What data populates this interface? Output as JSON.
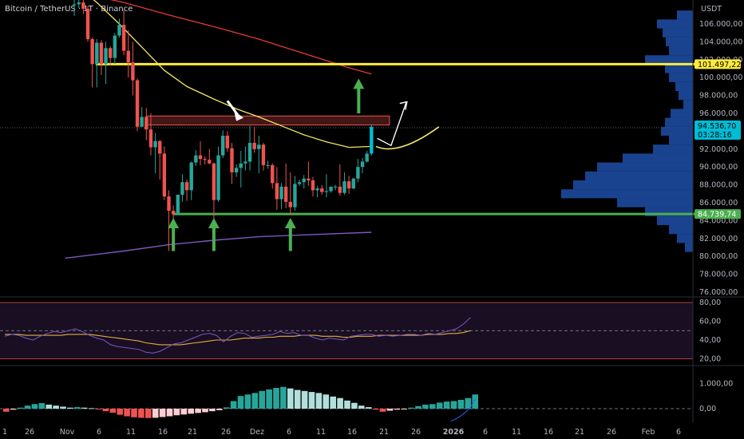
{
  "header": {
    "title": "Bitcoin / TetherUS · 1T · Binance",
    "currency": "USDT"
  },
  "colors": {
    "background": "#000000",
    "up": "#26a69a",
    "up_highlight": "#00bcd4",
    "down": "#ef5350",
    "resistance_line": "#ffeb3b",
    "support_line": "#4caf50",
    "ema_short": "#f5e663",
    "ma_long": "#e53935",
    "ma_200": "#7e57c2",
    "volume_profile": "#1e4fa8",
    "rsi_line": "#7e57c2",
    "rsi_signal": "#e0b040",
    "macd_pos": "#26a69a",
    "macd_pos_light": "#b2dfdb",
    "macd_neg": "#ef5350",
    "macd_neg_light": "#ffcdd2",
    "arrow_green": "#4caf50",
    "arrow_white": "#ffffff",
    "zone_fill": "#ef5350"
  },
  "price_axis": {
    "ticks": [
      "106.000,00",
      "104.000,00",
      "102.000,00",
      "100.000,00",
      "98.000,00",
      "96.000,00",
      "92.000,00",
      "90.000,00",
      "88.000,00",
      "86.000,00",
      "84.000,00",
      "82.000,00",
      "80.000,00",
      "78.000,00",
      "76.000,00"
    ],
    "resistance_badge": "101.497,22",
    "current_price_badge": "94.536,70",
    "countdown_badge": "03:28:16",
    "support_badge": "84.739,74"
  },
  "rsi_axis": {
    "ticks": [
      "80,00",
      "60,00",
      "40,00",
      "20,00"
    ]
  },
  "macd_axis": {
    "ticks": [
      "1.000,00",
      "0,00"
    ]
  },
  "time_axis": {
    "labels": [
      "1",
      "26",
      "Nov",
      "6",
      "11",
      "16",
      "21",
      "26",
      "Dez",
      "6",
      "11",
      "16",
      "21",
      "26",
      "2026",
      "6",
      "11",
      "16",
      "21",
      "26",
      "Feb",
      "6"
    ]
  },
  "chart_data": {
    "type": "candlestick",
    "ylim": [
      75000,
      109000
    ],
    "candles": [
      {
        "date": "Okt 31",
        "o": 108100,
        "h": 109000,
        "l": 106900,
        "c": 108200
      },
      {
        "date": "Nov 1",
        "o": 108200,
        "h": 109200,
        "l": 107800,
        "c": 108400
      },
      {
        "date": "Nov 2",
        "o": 108400,
        "h": 108800,
        "l": 107100,
        "c": 107700
      },
      {
        "date": "Nov 3",
        "o": 107700,
        "h": 108000,
        "l": 104000,
        "c": 104300
      },
      {
        "date": "Nov 4",
        "o": 104300,
        "h": 104500,
        "l": 98900,
        "c": 101500
      },
      {
        "date": "Nov 5",
        "o": 101500,
        "h": 104300,
        "l": 98900,
        "c": 103900
      },
      {
        "date": "Nov 6",
        "o": 103900,
        "h": 104200,
        "l": 100300,
        "c": 101500
      },
      {
        "date": "Nov 7",
        "o": 101500,
        "h": 104000,
        "l": 99300,
        "c": 103300
      },
      {
        "date": "Nov 8",
        "o": 103300,
        "h": 103500,
        "l": 101400,
        "c": 102200
      },
      {
        "date": "Nov 9",
        "o": 102200,
        "h": 105000,
        "l": 101500,
        "c": 104700
      },
      {
        "date": "Nov 10",
        "o": 104700,
        "h": 106600,
        "l": 104500,
        "c": 105900
      },
      {
        "date": "Nov 11",
        "o": 105900,
        "h": 107500,
        "l": 102500,
        "c": 103000
      },
      {
        "date": "Nov 12",
        "o": 103000,
        "h": 105300,
        "l": 100000,
        "c": 101700
      },
      {
        "date": "Nov 13",
        "o": 101700,
        "h": 104000,
        "l": 98000,
        "c": 99700
      },
      {
        "date": "Nov 14",
        "o": 99700,
        "h": 99900,
        "l": 94000,
        "c": 94500
      },
      {
        "date": "Nov 15",
        "o": 94500,
        "h": 96700,
        "l": 94500,
        "c": 95600
      },
      {
        "date": "Nov 16",
        "o": 95600,
        "h": 96600,
        "l": 93000,
        "c": 94200
      },
      {
        "date": "Nov 17",
        "o": 94200,
        "h": 96000,
        "l": 91300,
        "c": 92200
      },
      {
        "date": "Nov 18",
        "o": 92200,
        "h": 93800,
        "l": 89300,
        "c": 92900
      },
      {
        "date": "Nov 19",
        "o": 92900,
        "h": 93000,
        "l": 88600,
        "c": 91500
      },
      {
        "date": "Nov 20",
        "o": 91500,
        "h": 92300,
        "l": 86300,
        "c": 86700
      },
      {
        "date": "Nov 21",
        "o": 86700,
        "h": 87400,
        "l": 80600,
        "c": 85100
      },
      {
        "date": "Nov 22",
        "o": 85100,
        "h": 85700,
        "l": 83500,
        "c": 84700
      },
      {
        "date": "Nov 23",
        "o": 84700,
        "h": 86600,
        "l": 84700,
        "c": 86900
      },
      {
        "date": "Nov 24",
        "o": 86900,
        "h": 89200,
        "l": 86100,
        "c": 88300
      },
      {
        "date": "Nov 25",
        "o": 88300,
        "h": 88600,
        "l": 86200,
        "c": 87400
      },
      {
        "date": "Nov 26",
        "o": 87400,
        "h": 90600,
        "l": 86300,
        "c": 90500
      },
      {
        "date": "Nov 27",
        "o": 90500,
        "h": 91900,
        "l": 90100,
        "c": 91300
      },
      {
        "date": "Nov 28",
        "o": 91300,
        "h": 92900,
        "l": 90200,
        "c": 90900
      },
      {
        "date": "Nov 29",
        "o": 90900,
        "h": 91200,
        "l": 90300,
        "c": 90800
      },
      {
        "date": "Nov 30",
        "o": 90800,
        "h": 92000,
        "l": 90300,
        "c": 90400
      },
      {
        "date": "Dez 1",
        "o": 90400,
        "h": 90500,
        "l": 83800,
        "c": 86300
      },
      {
        "date": "Dez 2",
        "o": 86300,
        "h": 92300,
        "l": 86100,
        "c": 91300
      },
      {
        "date": "Dez 3",
        "o": 91300,
        "h": 94100,
        "l": 91000,
        "c": 93500
      },
      {
        "date": "Dez 4",
        "o": 93500,
        "h": 94000,
        "l": 91700,
        "c": 92100
      },
      {
        "date": "Dez 5",
        "o": 92100,
        "h": 92700,
        "l": 88100,
        "c": 89400
      },
      {
        "date": "Dez 6",
        "o": 89400,
        "h": 90300,
        "l": 88900,
        "c": 89900
      },
      {
        "date": "Dez 7",
        "o": 89900,
        "h": 91800,
        "l": 87700,
        "c": 90400
      },
      {
        "date": "Dez 8",
        "o": 90400,
        "h": 92300,
        "l": 89600,
        "c": 90600
      },
      {
        "date": "Dez 9",
        "o": 90600,
        "h": 94600,
        "l": 89600,
        "c": 92700
      },
      {
        "date": "Dez 10",
        "o": 92700,
        "h": 94500,
        "l": 91600,
        "c": 92000
      },
      {
        "date": "Dez 11",
        "o": 92000,
        "h": 93500,
        "l": 89300,
        "c": 92500
      },
      {
        "date": "Dez 12",
        "o": 92500,
        "h": 92700,
        "l": 89600,
        "c": 90200
      },
      {
        "date": "Dez 13",
        "o": 90200,
        "h": 90700,
        "l": 89800,
        "c": 90200
      },
      {
        "date": "Dez 14",
        "o": 90200,
        "h": 90400,
        "l": 87600,
        "c": 88200
      },
      {
        "date": "Dez 15",
        "o": 88200,
        "h": 90000,
        "l": 85200,
        "c": 86400
      },
      {
        "date": "Dez 16",
        "o": 86400,
        "h": 88200,
        "l": 85300,
        "c": 87800
      },
      {
        "date": "Dez 17",
        "o": 87800,
        "h": 90400,
        "l": 85400,
        "c": 86100
      },
      {
        "date": "Dez 18",
        "o": 86100,
        "h": 89400,
        "l": 84600,
        "c": 85500
      },
      {
        "date": "Dez 19",
        "o": 85500,
        "h": 89000,
        "l": 85100,
        "c": 88100
      },
      {
        "date": "Dez 20",
        "o": 88100,
        "h": 88600,
        "l": 87900,
        "c": 88300
      },
      {
        "date": "Dez 21",
        "o": 88300,
        "h": 89100,
        "l": 87600,
        "c": 88700
      },
      {
        "date": "Dez 22",
        "o": 88700,
        "h": 90600,
        "l": 87900,
        "c": 88500
      },
      {
        "date": "Dez 23",
        "o": 88500,
        "h": 88900,
        "l": 86700,
        "c": 87400
      },
      {
        "date": "Dez 24",
        "o": 87400,
        "h": 87900,
        "l": 86600,
        "c": 87600
      },
      {
        "date": "Dez 25",
        "o": 87600,
        "h": 88000,
        "l": 86900,
        "c": 87200
      },
      {
        "date": "Dez 26",
        "o": 87200,
        "h": 89200,
        "l": 86600,
        "c": 87300
      },
      {
        "date": "Dez 27",
        "o": 87300,
        "h": 87800,
        "l": 87100,
        "c": 87800
      },
      {
        "date": "Dez 28",
        "o": 87800,
        "h": 88000,
        "l": 87400,
        "c": 87800
      },
      {
        "date": "Dez 29",
        "o": 87800,
        "h": 90300,
        "l": 86800,
        "c": 87100
      },
      {
        "date": "Dez 30",
        "o": 87100,
        "h": 89400,
        "l": 86900,
        "c": 88400
      },
      {
        "date": "Dez 31",
        "o": 88400,
        "h": 89000,
        "l": 87000,
        "c": 87600
      },
      {
        "date": "Jan 1",
        "o": 87600,
        "h": 88800,
        "l": 87500,
        "c": 88700
      },
      {
        "date": "Jan 2",
        "o": 88700,
        "h": 90900,
        "l": 88300,
        "c": 90000
      },
      {
        "date": "Jan 3",
        "o": 90000,
        "h": 91000,
        "l": 89300,
        "c": 90600
      },
      {
        "date": "Jan 4",
        "o": 90600,
        "h": 91800,
        "l": 90500,
        "c": 91500
      },
      {
        "date": "Jan 5",
        "o": 91500,
        "h": 94700,
        "l": 91300,
        "c": 94500
      }
    ],
    "ema_short": [
      {
        "date": "Okt 31",
        "v": 110500
      },
      {
        "date": "Nov 5",
        "v": 108400
      },
      {
        "date": "Nov 10",
        "v": 106000
      },
      {
        "date": "Nov 15",
        "v": 103400
      },
      {
        "date": "Nov 20",
        "v": 100800
      },
      {
        "date": "Nov 25",
        "v": 99000
      },
      {
        "date": "Dez 1",
        "v": 97600
      },
      {
        "date": "Dez 6",
        "v": 96500
      },
      {
        "date": "Dez 11",
        "v": 95600
      },
      {
        "date": "Dez 16",
        "v": 94600
      },
      {
        "date": "Dez 21",
        "v": 93600
      },
      {
        "date": "Dez 26",
        "v": 92800
      },
      {
        "date": "Dez 31",
        "v": 92200
      },
      {
        "date": "Jan 5",
        "v": 92300
      }
    ],
    "ma_long": [
      {
        "date": "Okt 20",
        "v": 110500
      },
      {
        "date": "Nov 1",
        "v": 109500
      },
      {
        "date": "Nov 11",
        "v": 108400
      },
      {
        "date": "Nov 21",
        "v": 107000
      },
      {
        "date": "Dez 1",
        "v": 105700
      },
      {
        "date": "Dez 11",
        "v": 104300
      },
      {
        "date": "Dez 21",
        "v": 102700
      },
      {
        "date": "Dez 31",
        "v": 101100
      },
      {
        "date": "Jan 5",
        "v": 100400
      }
    ],
    "ma_200": [
      {
        "date": "Okt 29",
        "v": 79800
      },
      {
        "date": "Nov 11",
        "v": 80600
      },
      {
        "date": "Nov 21",
        "v": 81300
      },
      {
        "date": "Dez 1",
        "v": 81800
      },
      {
        "date": "Dez 11",
        "v": 82200
      },
      {
        "date": "Dez 21",
        "v": 82400
      },
      {
        "date": "Jan 5",
        "v": 82700
      }
    ],
    "resistance_level": 101497.22,
    "support_level": 84739.74,
    "zone": {
      "from": "Nov 16",
      "to": "Jan 9",
      "low": 94700,
      "high": 95700
    },
    "projection_curve": [
      {
        "date": "Jan 6",
        "v": 92300
      },
      {
        "date": "Jan 9",
        "v": 92100
      },
      {
        "date": "Jan 13",
        "v": 92400
      },
      {
        "date": "Jan 16",
        "v": 93200
      },
      {
        "date": "Jan 20",
        "v": 94500
      }
    ],
    "white_arrow_path": [
      {
        "date": "Jan 7",
        "v": 93200
      },
      {
        "date": "Jan 9",
        "v": 92400
      },
      {
        "date": "Jan 12",
        "v": 97200
      }
    ],
    "green_arrows_up": [
      {
        "date": "Nov 22",
        "from": 80600,
        "to": 84300
      },
      {
        "date": "Dez 1",
        "from": 80600,
        "to": 84300
      },
      {
        "date": "Dez 18",
        "from": 80600,
        "to": 84300
      }
    ],
    "green_arrow_up_top": {
      "date": "Jan 5",
      "from": 96000,
      "to": 99900
    },
    "white_arrow_down": {
      "from_date": "Dez 4",
      "from_v": 97400,
      "to_date": "Dez 9",
      "to_v": 95500
    },
    "volume_profile": [
      {
        "p": 107000,
        "w": 20
      },
      {
        "p": 106000,
        "w": 45
      },
      {
        "p": 105000,
        "w": 38
      },
      {
        "p": 104000,
        "w": 34
      },
      {
        "p": 103000,
        "w": 30
      },
      {
        "p": 102000,
        "w": 60
      },
      {
        "p": 101000,
        "w": 35
      },
      {
        "p": 100000,
        "w": 30
      },
      {
        "p": 99000,
        "w": 22
      },
      {
        "p": 98000,
        "w": 18
      },
      {
        "p": 97000,
        "w": 12
      },
      {
        "p": 96000,
        "w": 28
      },
      {
        "p": 95000,
        "w": 35
      },
      {
        "p": 94000,
        "w": 40
      },
      {
        "p": 93000,
        "w": 30
      },
      {
        "p": 92000,
        "w": 50
      },
      {
        "p": 91000,
        "w": 88
      },
      {
        "p": 90000,
        "w": 120
      },
      {
        "p": 89000,
        "w": 135
      },
      {
        "p": 88000,
        "w": 150
      },
      {
        "p": 87000,
        "w": 165
      },
      {
        "p": 86000,
        "w": 95
      },
      {
        "p": 85000,
        "w": 60
      },
      {
        "p": 84000,
        "w": 45
      },
      {
        "p": 83000,
        "w": 30
      },
      {
        "p": 82000,
        "w": 20
      },
      {
        "p": 81000,
        "w": 10
      }
    ],
    "rsi": {
      "ylim": [
        15,
        85
      ],
      "bands": [
        80,
        50,
        20
      ],
      "line": [
        44,
        46,
        45,
        42,
        40,
        44,
        47,
        49,
        48,
        50,
        52,
        49,
        45,
        42,
        40,
        35,
        33,
        32,
        31,
        30,
        27,
        26,
        28,
        32,
        36,
        37,
        40,
        43,
        46,
        47,
        45,
        38,
        44,
        48,
        47,
        43,
        44,
        45,
        46,
        49,
        47,
        48,
        45,
        45,
        42,
        40,
        42,
        41,
        40,
        44,
        45,
        46,
        46,
        44,
        45,
        44,
        45,
        46,
        46,
        45,
        47,
        46,
        48,
        50,
        52,
        57,
        64
      ],
      "signal": [
        46,
        46,
        46,
        45,
        45,
        45,
        45,
        45,
        45,
        46,
        46,
        46,
        46,
        45,
        44,
        43,
        42,
        41,
        40,
        39,
        37,
        36,
        35,
        35,
        35,
        35,
        36,
        37,
        38,
        39,
        40,
        40,
        40,
        41,
        42,
        42,
        42,
        43,
        43,
        44,
        44,
        44,
        45,
        45,
        45,
        44,
        44,
        44,
        43,
        43,
        44,
        44,
        44,
        45,
        45,
        45,
        45,
        45,
        45,
        45,
        46,
        46,
        46,
        47,
        47,
        48,
        50
      ]
    },
    "macd": {
      "ylim": [
        -500,
        1500
      ],
      "zero": 0,
      "hist": [
        -120,
        -40,
        40,
        120,
        180,
        220,
        160,
        120,
        80,
        40,
        60,
        40,
        20,
        -30,
        -100,
        -160,
        -240,
        -300,
        -340,
        -360,
        -370,
        -360,
        -330,
        -300,
        -260,
        -230,
        -200,
        -170,
        -140,
        -100,
        -60,
        50,
        300,
        500,
        560,
        620,
        700,
        760,
        820,
        860,
        800,
        740,
        700,
        660,
        620,
        560,
        480,
        420,
        320,
        230,
        120,
        60,
        -40,
        -120,
        -80,
        -40,
        -20,
        40,
        100,
        160,
        180,
        240,
        280,
        300,
        350,
        420,
        560
      ]
    }
  }
}
